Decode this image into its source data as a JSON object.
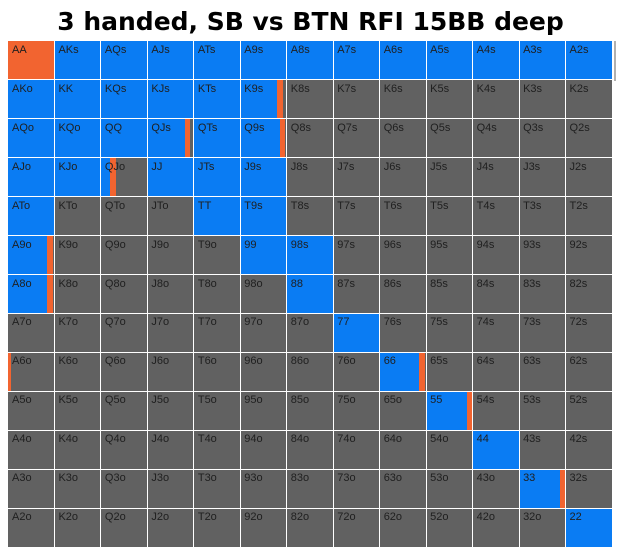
{
  "title": "3 handed, SB vs BTN RFI 15BB deep",
  "colors": {
    "raise": "#0a7cf3",
    "fold": "#616161",
    "mixed": "#f26430",
    "label": "#1f1f1f"
  },
  "grid_size": 13,
  "hands": [
    [
      "AA",
      "AKs",
      "AQs",
      "AJs",
      "ATs",
      "A9s",
      "A8s",
      "A7s",
      "A6s",
      "A5s",
      "A4s",
      "A3s",
      "A2s"
    ],
    [
      "AKo",
      "KK",
      "KQs",
      "KJs",
      "KTs",
      "K9s",
      "K8s",
      "K7s",
      "K6s",
      "K5s",
      "K4s",
      "K3s",
      "K2s"
    ],
    [
      "AQo",
      "KQo",
      "QQ",
      "QJs",
      "QTs",
      "Q9s",
      "Q8s",
      "Q7s",
      "Q6s",
      "Q5s",
      "Q4s",
      "Q3s",
      "Q2s"
    ],
    [
      "AJo",
      "KJo",
      "QJo",
      "JJ",
      "JTs",
      "J9s",
      "J8s",
      "J7s",
      "J6s",
      "J5s",
      "J4s",
      "J3s",
      "J2s"
    ],
    [
      "ATo",
      "KTo",
      "QTo",
      "JTo",
      "TT",
      "T9s",
      "T8s",
      "T7s",
      "T6s",
      "T5s",
      "T4s",
      "T3s",
      "T2s"
    ],
    [
      "A9o",
      "K9o",
      "Q9o",
      "J9o",
      "T9o",
      "99",
      "98s",
      "97s",
      "96s",
      "95s",
      "94s",
      "93s",
      "92s"
    ],
    [
      "A8o",
      "K8o",
      "Q8o",
      "J8o",
      "T8o",
      "98o",
      "88",
      "87s",
      "86s",
      "85s",
      "84s",
      "83s",
      "82s"
    ],
    [
      "A7o",
      "K7o",
      "Q7o",
      "J7o",
      "T7o",
      "97o",
      "87o",
      "77",
      "76s",
      "75s",
      "74s",
      "73s",
      "72s"
    ],
    [
      "A6o",
      "K6o",
      "Q6o",
      "J6o",
      "T6o",
      "96o",
      "86o",
      "76o",
      "66",
      "65s",
      "64s",
      "63s",
      "62s"
    ],
    [
      "A5o",
      "K5o",
      "Q5o",
      "J5o",
      "T5o",
      "95o",
      "85o",
      "75o",
      "65o",
      "55",
      "54s",
      "53s",
      "52s"
    ],
    [
      "A4o",
      "K4o",
      "Q4o",
      "J4o",
      "T4o",
      "94o",
      "84o",
      "74o",
      "64o",
      "54o",
      "44",
      "43s",
      "42s"
    ],
    [
      "A3o",
      "K3o",
      "Q3o",
      "J3o",
      "T3o",
      "93o",
      "83o",
      "73o",
      "63o",
      "53o",
      "43o",
      "33",
      "32s"
    ],
    [
      "A2o",
      "K2o",
      "Q2o",
      "J2o",
      "T2o",
      "92o",
      "82o",
      "72o",
      "62o",
      "52o",
      "42o",
      "32o",
      "22"
    ]
  ],
  "strategy": [
    [
      "mixed",
      "raise",
      "raise",
      "raise",
      "raise",
      "raise",
      "raise",
      "raise",
      "raise",
      "raise",
      "raise",
      "raise",
      "raise"
    ],
    [
      "raise",
      "raise",
      "raise",
      "raise",
      "raise",
      "raise",
      "fold",
      "fold",
      "fold",
      "fold",
      "fold",
      "fold",
      "fold"
    ],
    [
      "raise",
      "raise",
      "raise",
      "raise",
      "raise",
      "raise",
      "fold",
      "fold",
      "fold",
      "fold",
      "fold",
      "fold",
      "fold"
    ],
    [
      "raise",
      "raise",
      "raise",
      "raise",
      "raise",
      "raise",
      "fold",
      "fold",
      "fold",
      "fold",
      "fold",
      "fold",
      "fold"
    ],
    [
      "raise",
      "fold",
      "fold",
      "fold",
      "raise",
      "raise",
      "fold",
      "fold",
      "fold",
      "fold",
      "fold",
      "fold",
      "fold"
    ],
    [
      "raise",
      "fold",
      "fold",
      "fold",
      "fold",
      "raise",
      "raise",
      "fold",
      "fold",
      "fold",
      "fold",
      "fold",
      "fold"
    ],
    [
      "raise",
      "fold",
      "fold",
      "fold",
      "fold",
      "fold",
      "raise",
      "fold",
      "fold",
      "fold",
      "fold",
      "fold",
      "fold"
    ],
    [
      "fold",
      "fold",
      "fold",
      "fold",
      "fold",
      "fold",
      "fold",
      "raise",
      "fold",
      "fold",
      "fold",
      "fold",
      "fold"
    ],
    [
      "fold",
      "fold",
      "fold",
      "fold",
      "fold",
      "fold",
      "fold",
      "fold",
      "raise",
      "fold",
      "fold",
      "fold",
      "fold"
    ],
    [
      "fold",
      "fold",
      "fold",
      "fold",
      "fold",
      "fold",
      "fold",
      "fold",
      "fold",
      "raise",
      "fold",
      "fold",
      "fold"
    ],
    [
      "fold",
      "fold",
      "fold",
      "fold",
      "fold",
      "fold",
      "fold",
      "fold",
      "fold",
      "fold",
      "raise",
      "fold",
      "fold"
    ],
    [
      "fold",
      "fold",
      "fold",
      "fold",
      "fold",
      "fold",
      "fold",
      "fold",
      "fold",
      "fold",
      "fold",
      "raise",
      "fold"
    ],
    [
      "fold",
      "fold",
      "fold",
      "fold",
      "fold",
      "fold",
      "fold",
      "fold",
      "fold",
      "fold",
      "fold",
      "fold",
      "raise"
    ]
  ],
  "mixes": [
    {
      "hand": "K9s",
      "raise_freq": 0.8,
      "mix_action": "mixed"
    },
    {
      "hand": "QJs",
      "raise_freq": 0.8,
      "mix_action": "mixed"
    },
    {
      "hand": "Q9s",
      "raise_freq": 0.85,
      "mix_action": "mixed"
    },
    {
      "hand": "QJo",
      "raise_freq": 0.2,
      "mix_action": "mixed"
    },
    {
      "hand": "A9o",
      "raise_freq": 0.85,
      "mix_action": "mixed"
    },
    {
      "hand": "A8o",
      "raise_freq": 0.85,
      "mix_action": "mixed"
    },
    {
      "hand": "A6o",
      "raise_freq": 0.0,
      "mix_action": "mixed",
      "mix_freq": 0.06
    },
    {
      "hand": "66",
      "raise_freq": 0.85,
      "mix_action": "mixed"
    },
    {
      "hand": "55",
      "raise_freq": 0.88,
      "mix_action": "mixed"
    },
    {
      "hand": "33",
      "raise_freq": 0.88,
      "mix_action": "mixed"
    }
  ]
}
